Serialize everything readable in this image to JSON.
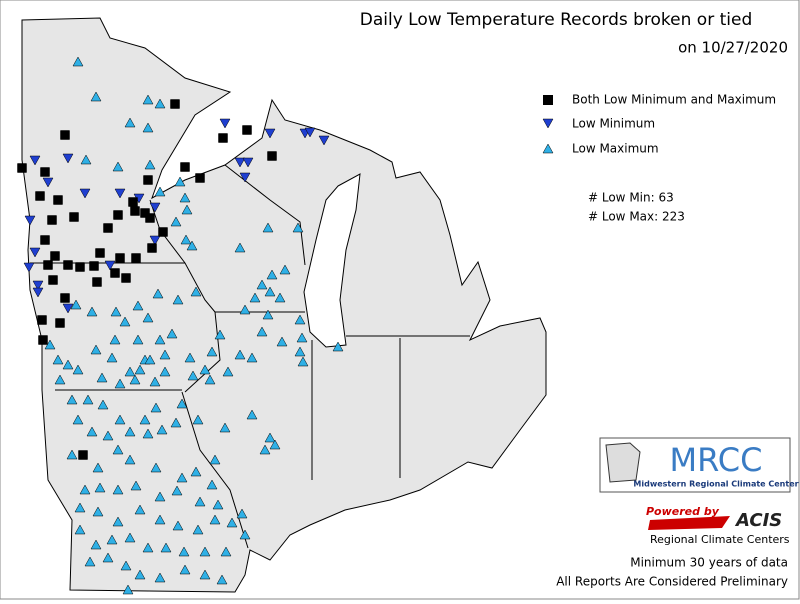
{
  "header": {
    "title": "Daily Low Temperature Records broken or tied",
    "date": "on 10/27/2020"
  },
  "legend": {
    "items": [
      "Both Low Minimum and Maximum",
      "Low Minimum",
      "Low Maximum"
    ]
  },
  "counts": [
    "# Low Min: 63",
    "# Low Max: 223"
  ],
  "logos": {
    "mrcc": "MRCC",
    "mrcc_name": "Midwestern Regional Climate Center",
    "powered": "Powered by",
    "acis": "ACIS",
    "acis_name": "Regional Climate Centers"
  },
  "notes": [
    "Minimum 30 years of data",
    "All Reports Are Considered Preliminary"
  ]
}
